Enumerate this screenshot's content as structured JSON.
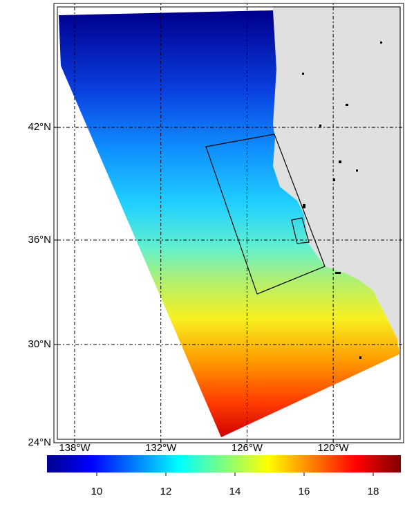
{
  "map": {
    "projection": "mercator",
    "xlim": [
      -139.44,
      -115.1
    ],
    "ylim": [
      24,
      48
    ],
    "lat_ticks": [
      {
        "value": 24,
        "label": "24°N"
      },
      {
        "value": 30,
        "label": "30°N"
      },
      {
        "value": 36,
        "label": "36°N"
      },
      {
        "value": 42,
        "label": "42°N"
      }
    ],
    "lon_ticks": [
      {
        "value": -138,
        "label": "138°W"
      },
      {
        "value": -132,
        "label": "132°W"
      },
      {
        "value": -126,
        "label": "126°W"
      },
      {
        "value": -120,
        "label": "120°W"
      }
    ],
    "grid": true,
    "colorbar": {
      "lim": [
        8.56,
        18.8
      ],
      "ticks": [
        10,
        12,
        14,
        16,
        18
      ]
    }
  }
}
